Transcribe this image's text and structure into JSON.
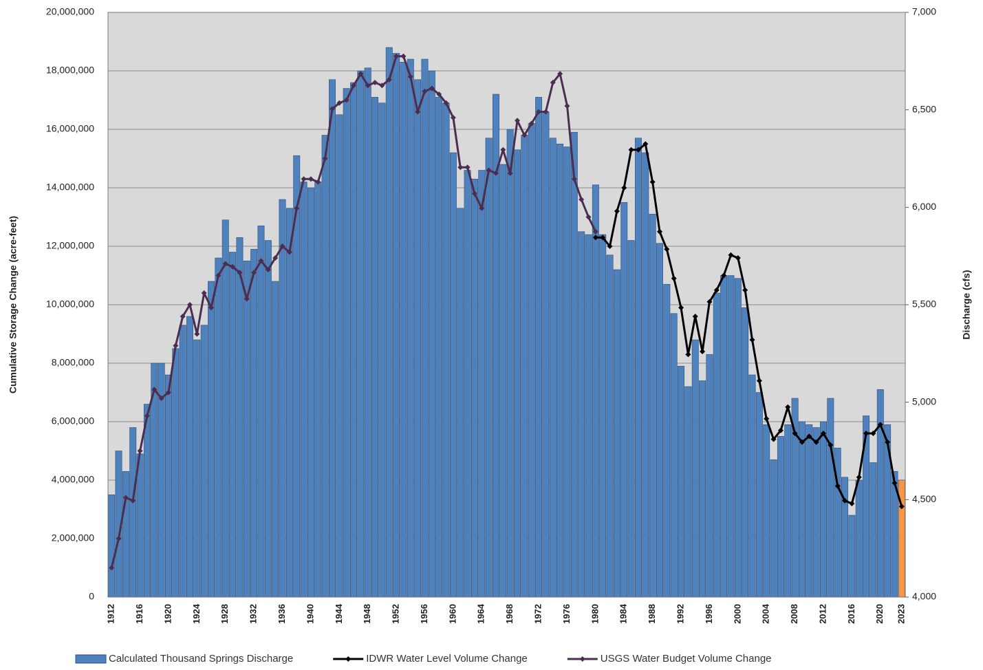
{
  "chart_data": {
    "type": "bar_line",
    "y_label": "Cumulative Storage Change (acre-feet)",
    "y2_label": "Discharge (cfs)",
    "categories": [
      "1912",
      null,
      null,
      null,
      "1916",
      null,
      null,
      null,
      "1920",
      null,
      null,
      null,
      "1924",
      null,
      null,
      null,
      "1928",
      null,
      null,
      null,
      "1932",
      null,
      null,
      null,
      "1936",
      null,
      null,
      null,
      "1940",
      null,
      null,
      null,
      "1944",
      null,
      null,
      null,
      "1948",
      null,
      null,
      null,
      "1952",
      null,
      null,
      null,
      "1956",
      null,
      null,
      null,
      "1960",
      null,
      null,
      null,
      "1964",
      null,
      null,
      null,
      "1968",
      null,
      null,
      null,
      "1972",
      null,
      null,
      null,
      "1976",
      null,
      null,
      null,
      "1980",
      null,
      null,
      null,
      "1984",
      null,
      null,
      null,
      "1988",
      null,
      null,
      null,
      "1992",
      null,
      null,
      null,
      "1996",
      null,
      null,
      null,
      "2000",
      null,
      null,
      null,
      "2004",
      null,
      null,
      null,
      "2008",
      null,
      null,
      null,
      "2012",
      null,
      null,
      null,
      "2016",
      null,
      null,
      null,
      "2020",
      null,
      null,
      "2023"
    ],
    "ylim": [
      0,
      20000000
    ],
    "yticks": [
      0,
      {
        "value": 2000000,
        "label": "2,000,000"
      },
      {
        "value": 4000000,
        "label": "4,000,000"
      },
      {
        "value": 6000000,
        "label": "6,000,000"
      },
      {
        "value": 8000000,
        "label": "8,000,000"
      },
      {
        "value": 10000000,
        "label": "10,000,000"
      },
      {
        "value": 12000000,
        "label": "12,000,000"
      },
      {
        "value": 14000000,
        "label": "14,000,000"
      },
      {
        "value": 16000000,
        "label": "16,000,000"
      },
      {
        "value": 18000000,
        "label": "18,000,000"
      },
      {
        "value": 20000000,
        "label": "20,000,000"
      }
    ],
    "y2lim": [
      4000,
      7000
    ],
    "y2ticks": [
      {
        "value": 4000,
        "label": "4,000"
      },
      {
        "value": 4500,
        "label": "4,500"
      },
      {
        "value": 5000,
        "label": "5,000"
      },
      {
        "value": 5500,
        "label": "5,500"
      },
      {
        "value": 6000,
        "label": "6,000"
      },
      {
        "value": 6500,
        "label": "6,500"
      },
      {
        "value": 7000,
        "label": "7,000"
      }
    ],
    "grid": true,
    "plot_background": "#d9d9d9",
    "legend": "bottom",
    "series": [
      {
        "name": "Calculated Thousand Springs Discharge",
        "type": "bar",
        "axis": "y2",
        "color": "#4f81bd",
        "last_color": "#f79646",
        "values": [
          4525,
          4750,
          4645,
          4870,
          4735,
          4990,
          5200,
          5200,
          5140,
          5275,
          5395,
          5440,
          5320,
          5395,
          5620,
          5740,
          5935,
          5770,
          5845,
          5725,
          5785,
          5905,
          5830,
          5620,
          6040,
          5995,
          6265,
          6130,
          6100,
          6130,
          6370,
          6655,
          6475,
          6610,
          6640,
          6700,
          6715,
          6565,
          6535,
          6820,
          6790,
          6745,
          6760,
          6655,
          6760,
          6700,
          6565,
          6535,
          6280,
          5995,
          6190,
          6145,
          6190,
          6355,
          6580,
          6220,
          6400,
          6295,
          6370,
          6430,
          6565,
          6490,
          6355,
          6325,
          6310,
          6385,
          5875,
          5860,
          6115,
          5860,
          5755,
          5680,
          6025,
          5830,
          6355,
          6280,
          5965,
          5815,
          5605,
          5455,
          5185,
          5080,
          5320,
          5110,
          5245,
          5560,
          5650,
          5650,
          5635,
          5485,
          5140,
          5050,
          4885,
          4705,
          4825,
          4885,
          5020,
          4900,
          4885,
          4870,
          4900,
          5020,
          4765,
          4615,
          4420,
          4600,
          4930,
          4690,
          5065,
          4885,
          4645,
          4600
        ]
      },
      {
        "name": "IDWR Water Level Volume Change",
        "type": "line",
        "color": "#000000",
        "values": [
          null,
          null,
          null,
          null,
          null,
          null,
          null,
          null,
          null,
          null,
          null,
          null,
          null,
          null,
          null,
          null,
          null,
          null,
          null,
          null,
          null,
          null,
          null,
          null,
          null,
          null,
          null,
          null,
          null,
          null,
          null,
          null,
          null,
          null,
          null,
          null,
          null,
          null,
          null,
          null,
          null,
          null,
          null,
          null,
          null,
          null,
          null,
          null,
          null,
          null,
          null,
          null,
          null,
          null,
          null,
          null,
          null,
          null,
          null,
          null,
          null,
          null,
          null,
          null,
          null,
          null,
          null,
          null,
          12300000,
          12300000,
          12000000,
          13200000,
          14000000,
          15300000,
          15300000,
          15500000,
          14200000,
          12500000,
          11900000,
          10900000,
          9900000,
          8300000,
          9600000,
          8400000,
          10100000,
          10500000,
          11000000,
          11700000,
          11600000,
          10500000,
          8800000,
          7400000,
          6100000,
          5400000,
          5700000,
          6500000,
          5600000,
          5300000,
          5500000,
          5300000,
          5600000,
          5200000,
          3800000,
          3300000,
          3200000,
          4100000,
          5600000,
          5600000,
          5900000,
          5300000,
          3900000,
          3100000
        ]
      },
      {
        "name": "USGS Water Budget Volume Change",
        "type": "line",
        "color": "#4b2e4f",
        "values": [
          1000000,
          2000000,
          3400000,
          3300000,
          5000000,
          6200000,
          7100000,
          6800000,
          7000000,
          8600000,
          9600000,
          10000000,
          9000000,
          10400000,
          9900000,
          11000000,
          11400000,
          11300000,
          11100000,
          10200000,
          11100000,
          11500000,
          11200000,
          11600000,
          12000000,
          11800000,
          13300000,
          14300000,
          14300000,
          14200000,
          15000000,
          16700000,
          16900000,
          17000000,
          17500000,
          17900000,
          17500000,
          17600000,
          17500000,
          17700000,
          18500000,
          18500000,
          17800000,
          16600000,
          17300000,
          17400000,
          17200000,
          16900000,
          16400000,
          14700000,
          14700000,
          13800000,
          13300000,
          14600000,
          14500000,
          15300000,
          14500000,
          16300000,
          15800000,
          16200000,
          16600000,
          16600000,
          17600000,
          17900000,
          16800000,
          14300000,
          13600000,
          13000000,
          12500000,
          null,
          null,
          null,
          null,
          null,
          null,
          null,
          null,
          null,
          null,
          null,
          null,
          null,
          null,
          null,
          null,
          null,
          null,
          null,
          null,
          null,
          null,
          null,
          null,
          null,
          null,
          null,
          null,
          null,
          null,
          null,
          null,
          null,
          null,
          null,
          null,
          null,
          null,
          null,
          null,
          null,
          null,
          null
        ]
      }
    ]
  }
}
